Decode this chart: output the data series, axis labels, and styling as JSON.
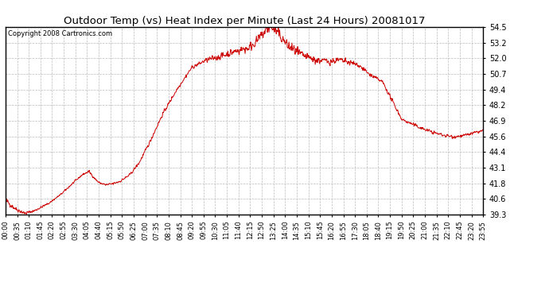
{
  "title": "Outdoor Temp (vs) Heat Index per Minute (Last 24 Hours) 20081017",
  "copyright": "Copyright 2008 Cartronics.com",
  "line_color": "#cc0000",
  "background_color": "#ffffff",
  "plot_bg_color": "#ffffff",
  "grid_color": "#bbbbbb",
  "ylim": [
    39.3,
    54.5
  ],
  "yticks": [
    39.3,
    40.6,
    41.8,
    43.1,
    44.4,
    45.6,
    46.9,
    48.2,
    49.4,
    50.7,
    52.0,
    53.2,
    54.5
  ],
  "xtick_labels": [
    "00:00",
    "00:35",
    "01:10",
    "01:45",
    "02:20",
    "02:55",
    "03:30",
    "04:05",
    "04:40",
    "05:15",
    "05:50",
    "06:25",
    "07:00",
    "07:35",
    "08:10",
    "08:45",
    "09:20",
    "09:55",
    "10:30",
    "11:05",
    "11:40",
    "12:15",
    "12:50",
    "13:25",
    "14:00",
    "14:35",
    "15:10",
    "15:45",
    "16:20",
    "16:55",
    "17:30",
    "18:05",
    "18:40",
    "19:15",
    "19:50",
    "20:25",
    "21:00",
    "21:35",
    "22:10",
    "22:45",
    "23:20",
    "23:55"
  ],
  "num_points": 1440,
  "seed": 42,
  "keypoints_t": [
    0.0,
    0.005,
    0.02,
    0.04,
    0.06,
    0.09,
    0.115,
    0.14,
    0.16,
    0.175,
    0.185,
    0.195,
    0.21,
    0.225,
    0.24,
    0.26,
    0.28,
    0.3,
    0.33,
    0.36,
    0.39,
    0.42,
    0.45,
    0.48,
    0.51,
    0.53,
    0.545,
    0.555,
    0.57,
    0.59,
    0.62,
    0.65,
    0.68,
    0.7,
    0.72,
    0.74,
    0.76,
    0.79,
    0.83,
    0.87,
    0.9,
    0.92,
    0.94,
    0.96,
    0.98,
    1.0
  ],
  "keypoints_v": [
    40.5,
    40.3,
    39.8,
    39.4,
    39.6,
    40.2,
    40.9,
    41.8,
    42.5,
    42.8,
    42.3,
    41.9,
    41.7,
    41.8,
    42.0,
    42.5,
    43.5,
    45.0,
    47.5,
    49.5,
    51.2,
    51.8,
    52.1,
    52.5,
    52.8,
    53.5,
    54.2,
    54.5,
    54.0,
    53.0,
    52.2,
    51.8,
    51.7,
    51.8,
    51.6,
    51.4,
    50.7,
    50.0,
    47.0,
    46.3,
    45.9,
    45.7,
    45.6,
    45.7,
    45.9,
    46.1
  ]
}
